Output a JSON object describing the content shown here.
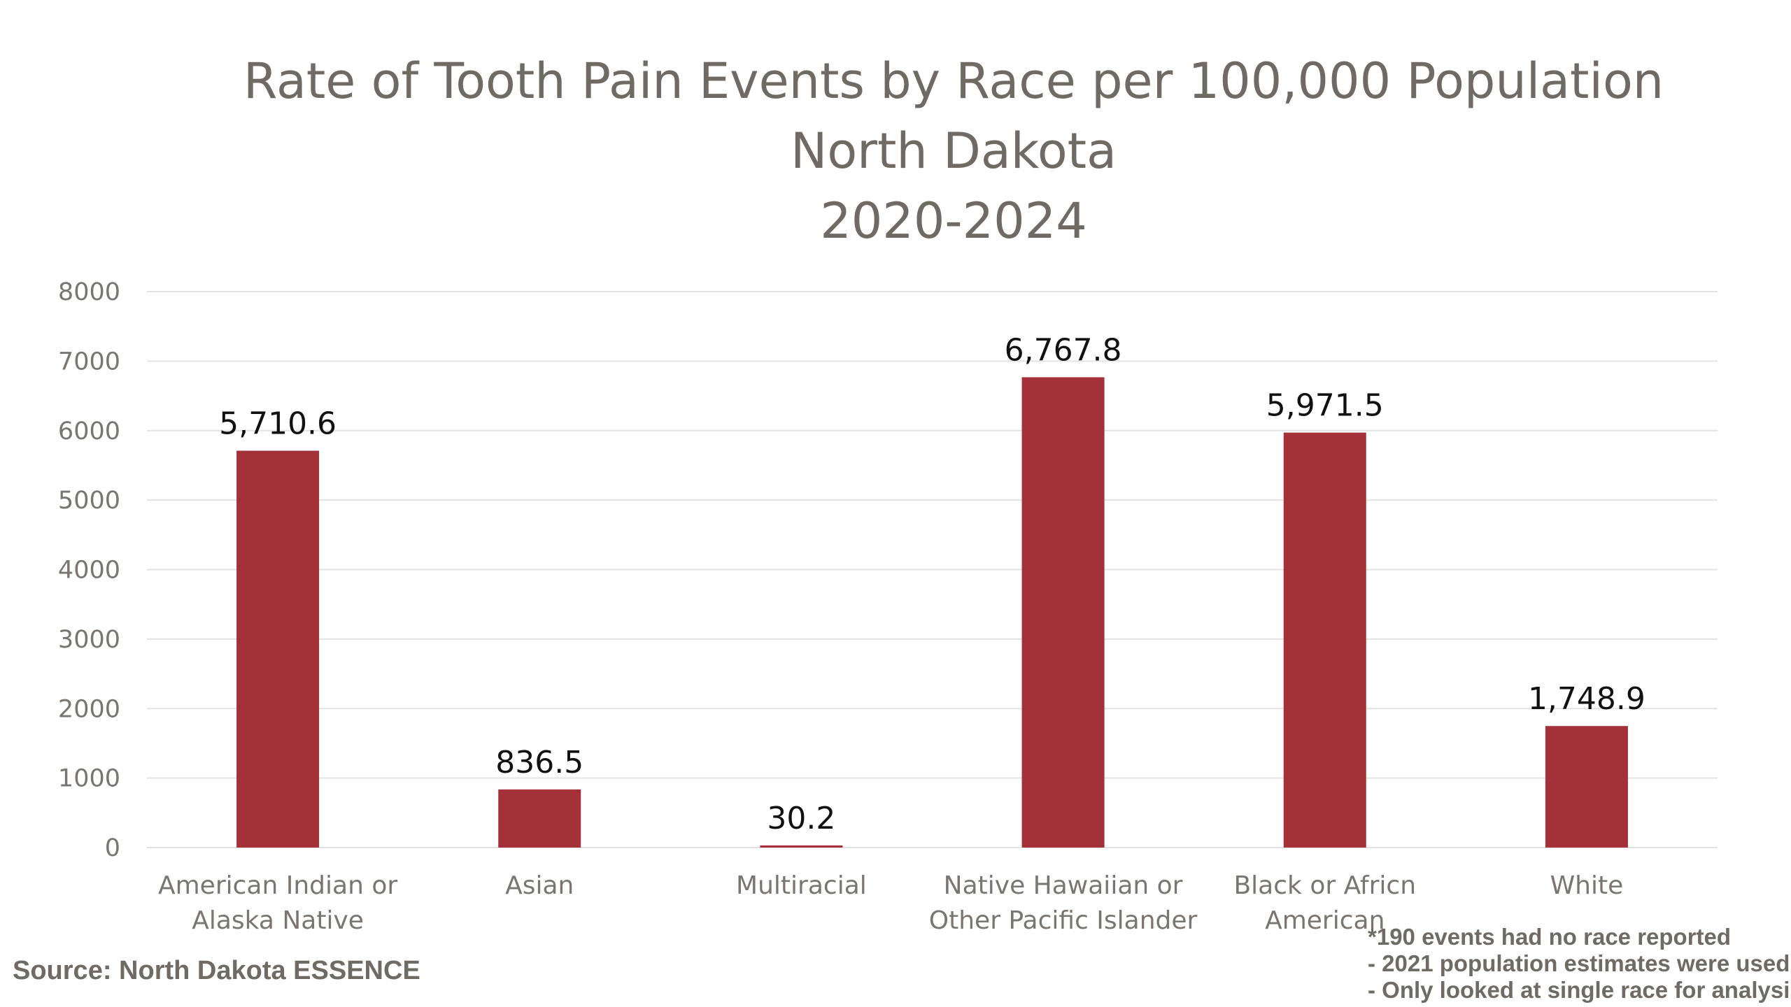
{
  "chart_data": {
    "type": "bar",
    "title_lines": [
      "Rate of Tooth Pain Events by Race per 100,000 Population",
      "North Dakota",
      "2020-2024"
    ],
    "categories": [
      [
        "American Indian or",
        "Alaska Native"
      ],
      [
        "Asian"
      ],
      [
        "Multiracial"
      ],
      [
        "Native Hawaiian or",
        "Other Pacific Islander"
      ],
      [
        "Black or Africn",
        "American"
      ],
      [
        "White"
      ]
    ],
    "values": [
      5710.6,
      836.5,
      30.2,
      6767.8,
      5971.5,
      1748.9
    ],
    "value_labels": [
      "5,710.6",
      "836.5",
      "30.2",
      "6,767.8",
      "5,971.5",
      "1,748.9"
    ],
    "ylim": [
      0,
      8000
    ],
    "yticks": [
      "0",
      "1000",
      "2000",
      "3000",
      "4000",
      "5000",
      "6000",
      "7000",
      "8000"
    ],
    "grid": true,
    "legend": "none",
    "bar_color": "#a4313a"
  },
  "footer": {
    "source": "Source: North Dakota ESSENCE",
    "notes": [
      "*190 events had no race reported",
      "- 2021 population estimates were used",
      "- Only looked at single race for analysis"
    ]
  }
}
